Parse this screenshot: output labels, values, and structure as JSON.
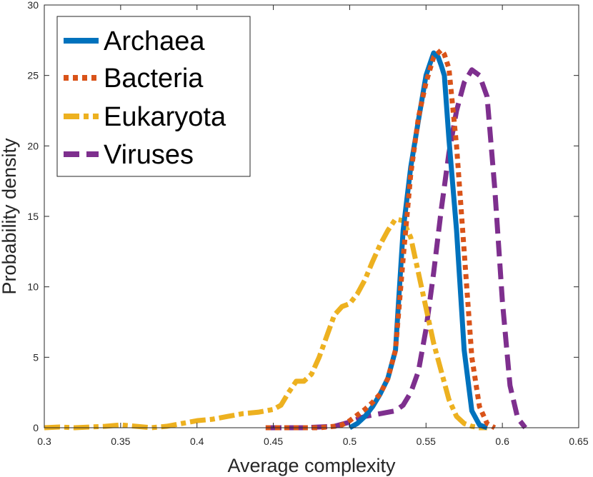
{
  "chart_data": {
    "type": "line",
    "title": "",
    "xlabel": "Average complexity",
    "ylabel": "Probability density",
    "xlim": [
      0.3,
      0.65
    ],
    "ylim": [
      0,
      30
    ],
    "xticks": [
      0.3,
      0.35,
      0.4,
      0.45,
      0.5,
      0.55,
      0.6,
      0.65
    ],
    "xtick_labels": [
      "0.3",
      "0.35",
      "0.4",
      "0.45",
      "0.5",
      "0.55",
      "0.6",
      "0.65"
    ],
    "yticks": [
      0,
      5,
      10,
      15,
      20,
      25,
      30
    ],
    "ytick_labels": [
      "0",
      "5",
      "10",
      "15",
      "20",
      "25",
      "30"
    ],
    "grid": false,
    "legend_position": "top-left",
    "series": [
      {
        "name": "Archaea",
        "color": "#0072BD",
        "style": "solid",
        "x": [
          0.5,
          0.505,
          0.51,
          0.515,
          0.52,
          0.525,
          0.53,
          0.535,
          0.54,
          0.545,
          0.55,
          0.555,
          0.558,
          0.56,
          0.562,
          0.565,
          0.57,
          0.575,
          0.58,
          0.585,
          0.59
        ],
        "y": [
          0.0,
          0.3,
          0.8,
          1.5,
          2.4,
          3.5,
          5.5,
          14.0,
          18.5,
          21.8,
          25.0,
          26.6,
          26.3,
          25.7,
          25.0,
          20.5,
          14.0,
          5.5,
          1.2,
          0.2,
          0.0
        ]
      },
      {
        "name": "Bacteria",
        "color": "#D95319",
        "style": "dotted",
        "x": [
          0.445,
          0.46,
          0.47,
          0.48,
          0.49,
          0.495,
          0.5,
          0.505,
          0.51,
          0.515,
          0.52,
          0.525,
          0.53,
          0.535,
          0.54,
          0.545,
          0.55,
          0.555,
          0.56,
          0.562,
          0.565,
          0.57,
          0.575,
          0.58,
          0.585,
          0.59,
          0.595
        ],
        "y": [
          0.0,
          0.0,
          0.0,
          0.0,
          0.1,
          0.2,
          0.5,
          0.9,
          1.3,
          1.8,
          2.4,
          3.5,
          5.5,
          12.0,
          18.0,
          22.0,
          24.5,
          26.3,
          26.8,
          26.5,
          25.5,
          20.0,
          12.5,
          5.0,
          1.5,
          0.3,
          0.0
        ]
      },
      {
        "name": "Eukaryota",
        "color": "#EDB120",
        "style": "dashdot",
        "x": [
          0.3,
          0.31,
          0.32,
          0.33,
          0.34,
          0.35,
          0.36,
          0.37,
          0.38,
          0.39,
          0.4,
          0.41,
          0.42,
          0.43,
          0.44,
          0.45,
          0.455,
          0.46,
          0.465,
          0.47,
          0.475,
          0.48,
          0.485,
          0.49,
          0.495,
          0.5,
          0.505,
          0.51,
          0.515,
          0.52,
          0.525,
          0.53,
          0.535,
          0.54,
          0.545,
          0.55,
          0.555,
          0.56,
          0.565,
          0.57,
          0.575,
          0.58,
          0.585,
          0.59
        ],
        "y": [
          0.0,
          0.05,
          0.0,
          0.05,
          0.1,
          0.2,
          0.1,
          0.0,
          0.1,
          0.3,
          0.5,
          0.6,
          0.8,
          1.0,
          1.1,
          1.3,
          1.6,
          2.5,
          3.3,
          3.3,
          3.8,
          5.0,
          6.5,
          8.0,
          8.6,
          8.8,
          9.5,
          10.5,
          11.8,
          13.0,
          14.0,
          14.8,
          14.7,
          13.5,
          11.0,
          8.5,
          6.0,
          4.0,
          2.0,
          0.8,
          0.3,
          0.1,
          0.0,
          0.0
        ]
      },
      {
        "name": "Viruses",
        "color": "#7E2F8E",
        "style": "dashed",
        "x": [
          0.445,
          0.46,
          0.47,
          0.48,
          0.49,
          0.5,
          0.51,
          0.52,
          0.53,
          0.535,
          0.54,
          0.545,
          0.55,
          0.555,
          0.56,
          0.565,
          0.57,
          0.575,
          0.58,
          0.585,
          0.59,
          0.595,
          0.6,
          0.605,
          0.61,
          0.615
        ],
        "y": [
          0.0,
          0.0,
          0.0,
          0.05,
          0.1,
          0.4,
          0.8,
          1.0,
          1.2,
          1.6,
          2.5,
          4.0,
          7.0,
          11.0,
          15.5,
          19.5,
          22.5,
          24.5,
          25.4,
          25.0,
          23.5,
          17.0,
          9.0,
          3.0,
          0.7,
          0.0
        ]
      }
    ]
  }
}
